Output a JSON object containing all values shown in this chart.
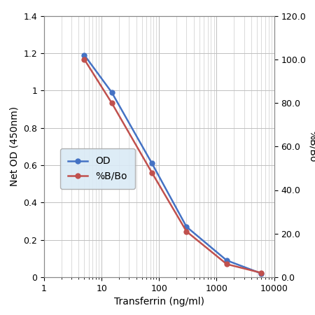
{
  "x": [
    5,
    15,
    75,
    300,
    1500,
    6000
  ],
  "od": [
    1.19,
    0.99,
    0.61,
    0.27,
    0.09,
    0.02
  ],
  "bbo": [
    100.0,
    80.0,
    48.0,
    21.0,
    6.0,
    2.0
  ],
  "od_color": "#4472C4",
  "bbo_color": "#C0504D",
  "xlabel": "Transferrin (ng/ml)",
  "ylabel_left": "Net OD (450nm)",
  "ylabel_right": "%B/Bo",
  "legend_od": "OD",
  "legend_bbo": "%B/Bo",
  "xlim": [
    1,
    10000
  ],
  "ylim_left": [
    0,
    1.4
  ],
  "ylim_right": [
    0.0,
    120.0
  ],
  "yticks_left": [
    0,
    0.2,
    0.4,
    0.6,
    0.8,
    1.0,
    1.2,
    1.4
  ],
  "yticks_right": [
    0.0,
    20.0,
    40.0,
    60.0,
    80.0,
    100.0,
    120.0
  ],
  "background_color": "#ffffff",
  "grid_color": "#c0c0c0",
  "legend_bg": "#daeaf6"
}
